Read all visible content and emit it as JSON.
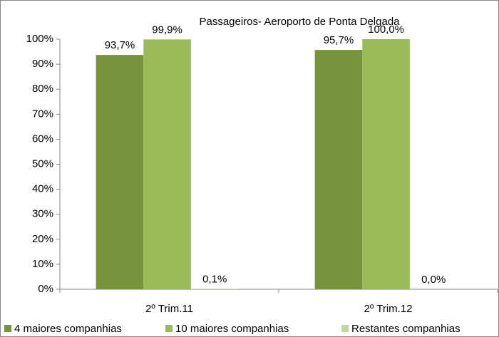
{
  "chart_data": {
    "type": "bar",
    "title": "Passageiros- Aeroporto de Ponta Delgada",
    "categories": [
      "2º Trim.11",
      "2º Trim.12"
    ],
    "series": [
      {
        "name": "4 maiores companhias",
        "color": "#77933c",
        "values": [
          93.7,
          95.7
        ],
        "value_labels": [
          "93,7%",
          "95,7%"
        ]
      },
      {
        "name": "10 maiores companhias",
        "color": "#9bbb59",
        "values": [
          99.9,
          100.0
        ],
        "value_labels": [
          "99,9%",
          "100,0%"
        ]
      },
      {
        "name": "Restantes companhias",
        "color": "#c3d69b",
        "values": [
          0.1,
          0.0
        ],
        "value_labels": [
          "0,1%",
          "0,0%"
        ]
      }
    ],
    "ylim": [
      0,
      100
    ],
    "yticks": [
      {
        "value": 0,
        "label": "0%"
      },
      {
        "value": 10,
        "label": "10%"
      },
      {
        "value": 20,
        "label": "20%"
      },
      {
        "value": 30,
        "label": "30%"
      },
      {
        "value": 40,
        "label": "40%"
      },
      {
        "value": 50,
        "label": "50%"
      },
      {
        "value": 60,
        "label": "60%"
      },
      {
        "value": 70,
        "label": "70%"
      },
      {
        "value": 80,
        "label": "80%"
      },
      {
        "value": 90,
        "label": "90%"
      },
      {
        "value": 100,
        "label": "100%"
      }
    ],
    "legend": "bottom"
  }
}
